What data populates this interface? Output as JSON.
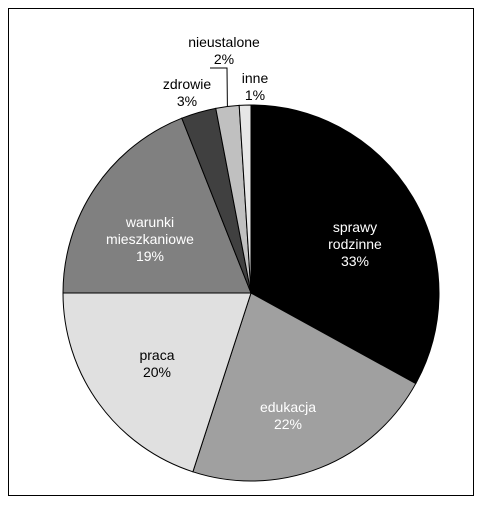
{
  "chart_data": {
    "type": "pie",
    "title": "",
    "colors": {
      "sprawy rodzinne": "#000000",
      "edukacja": "#a0a0a0",
      "praca": "#e0e0e0",
      "warunki mieszkaniowe": "#808080",
      "zdrowie": "#404040",
      "nieustalone": "#c0c0c0",
      "inne": "#e6e6e6"
    },
    "slices": [
      {
        "label_lines": [
          "sprawy",
          "rodzinne"
        ],
        "value_label": "33%",
        "value": 33,
        "color": "#000000",
        "text_color": "#ffffff",
        "placement": "inside"
      },
      {
        "label_lines": [
          "edukacja"
        ],
        "value_label": "22%",
        "value": 22,
        "color": "#a0a0a0",
        "text_color": "#ffffff",
        "placement": "inside"
      },
      {
        "label_lines": [
          "praca"
        ],
        "value_label": "20%",
        "value": 20,
        "color": "#e0e0e0",
        "text_color": "#000000",
        "placement": "inside"
      },
      {
        "label_lines": [
          "warunki",
          "mieszkaniowe"
        ],
        "value_label": "19%",
        "value": 19,
        "color": "#808080",
        "text_color": "#ffffff",
        "placement": "inside"
      },
      {
        "label_lines": [
          "zdrowie"
        ],
        "value_label": "3%",
        "value": 3,
        "color": "#404040",
        "text_color": "#000000",
        "placement": "outside"
      },
      {
        "label_lines": [
          "nieustalone"
        ],
        "value_label": "2%",
        "value": 2,
        "color": "#c0c0c0",
        "text_color": "#000000",
        "placement": "outside-leader"
      },
      {
        "label_lines": [
          "inne"
        ],
        "value_label": "1%",
        "value": 1,
        "color": "#e6e6e6",
        "text_color": "#000000",
        "placement": "outside"
      }
    ],
    "start": "12 o'clock",
    "direction": "clockwise"
  }
}
